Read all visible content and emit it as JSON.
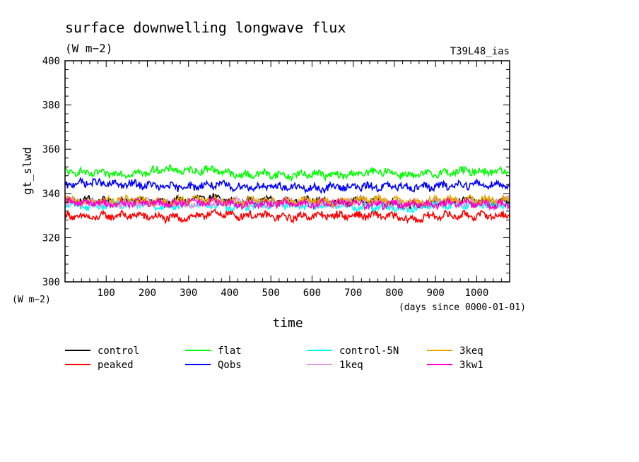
{
  "chart_data": {
    "type": "line",
    "title": "surface downwelling longwave flux",
    "subtitle": "(W m−2)",
    "run_label": "T39L48_ias",
    "xlabel": "time",
    "x_units": "(days since 0000-01-01)",
    "ylabel": "gt_slwd",
    "y_units": "(W m−2)",
    "xlim": [
      0,
      1080
    ],
    "ylim": [
      300,
      400
    ],
    "x_ticks": [
      100,
      200,
      300,
      400,
      500,
      600,
      700,
      800,
      900,
      1000
    ],
    "y_ticks": [
      300,
      320,
      340,
      360,
      380,
      400
    ],
    "grid": false,
    "legend_position": "bottom",
    "series": [
      {
        "name": "control",
        "color": "#000000",
        "x": [
          0,
          60,
          120,
          180,
          240,
          300,
          360,
          420,
          480,
          540,
          600,
          660,
          720,
          780,
          840,
          900,
          960,
          1020,
          1080
        ],
        "values": [
          336,
          337,
          336,
          337,
          336,
          337,
          338,
          336,
          337,
          336,
          337,
          336,
          337,
          336,
          334,
          336,
          337,
          336,
          336
        ]
      },
      {
        "name": "peaked",
        "color": "#ff0000",
        "x": [
          0,
          60,
          120,
          180,
          240,
          300,
          360,
          420,
          480,
          540,
          600,
          660,
          720,
          780,
          840,
          900,
          960,
          1020,
          1080
        ],
        "values": [
          330,
          329,
          330,
          330,
          329,
          329,
          331,
          330,
          330,
          329,
          330,
          330,
          330,
          330,
          328,
          330,
          330,
          330,
          330
        ]
      },
      {
        "name": "flat",
        "color": "#00ff00",
        "x": [
          0,
          60,
          120,
          180,
          240,
          300,
          360,
          420,
          480,
          540,
          600,
          660,
          720,
          780,
          840,
          900,
          960,
          1020,
          1080
        ],
        "values": [
          350,
          349,
          349,
          349,
          351,
          350,
          351,
          348,
          349,
          348,
          349,
          348,
          349,
          350,
          348,
          349,
          350,
          350,
          350
        ]
      },
      {
        "name": "Qobs",
        "color": "#0000ff",
        "x": [
          0,
          60,
          120,
          180,
          240,
          300,
          360,
          420,
          480,
          540,
          600,
          660,
          720,
          780,
          840,
          900,
          960,
          1020,
          1080
        ],
        "values": [
          344,
          345,
          344,
          344,
          343,
          343,
          344,
          343,
          343,
          343,
          342,
          343,
          343,
          343,
          343,
          343,
          344,
          344,
          344
        ]
      },
      {
        "name": "control-5N",
        "color": "#00ffff",
        "x": [
          0,
          60,
          120,
          180,
          240,
          300,
          360,
          420,
          480,
          540,
          600,
          660,
          720,
          780,
          840,
          900,
          960,
          1020,
          1080
        ],
        "values": [
          335,
          334,
          335,
          335,
          334,
          335,
          335,
          334,
          335,
          335,
          334,
          335,
          334,
          334,
          333,
          335,
          335,
          335,
          335
        ]
      },
      {
        "name": "1keq",
        "color": "#dd99dd",
        "x": [
          0,
          60,
          120,
          180,
          240,
          300,
          360,
          420,
          480,
          540,
          600,
          660,
          720,
          780,
          840,
          900,
          960,
          1020,
          1080
        ],
        "values": [
          336,
          336,
          335,
          336,
          336,
          335,
          336,
          336,
          335,
          336,
          336,
          335,
          337,
          336,
          335,
          336,
          336,
          336,
          337
        ]
      },
      {
        "name": "3keq",
        "color": "#e8a800",
        "x": [
          0,
          60,
          120,
          180,
          240,
          300,
          360,
          420,
          480,
          540,
          600,
          660,
          720,
          780,
          840,
          900,
          960,
          1020,
          1080
        ],
        "values": [
          337,
          336,
          337,
          337,
          336,
          337,
          337,
          336,
          337,
          336,
          337,
          336,
          337,
          337,
          336,
          337,
          337,
          337,
          337
        ]
      },
      {
        "name": "3kw1",
        "color": "#ff00cc",
        "x": [
          0,
          60,
          120,
          180,
          240,
          300,
          360,
          420,
          480,
          540,
          600,
          660,
          720,
          780,
          840,
          900,
          960,
          1020,
          1080
        ],
        "values": [
          336,
          336,
          335,
          336,
          335,
          336,
          336,
          335,
          335,
          336,
          335,
          336,
          335,
          335,
          335,
          335,
          336,
          335,
          335
        ]
      }
    ]
  }
}
